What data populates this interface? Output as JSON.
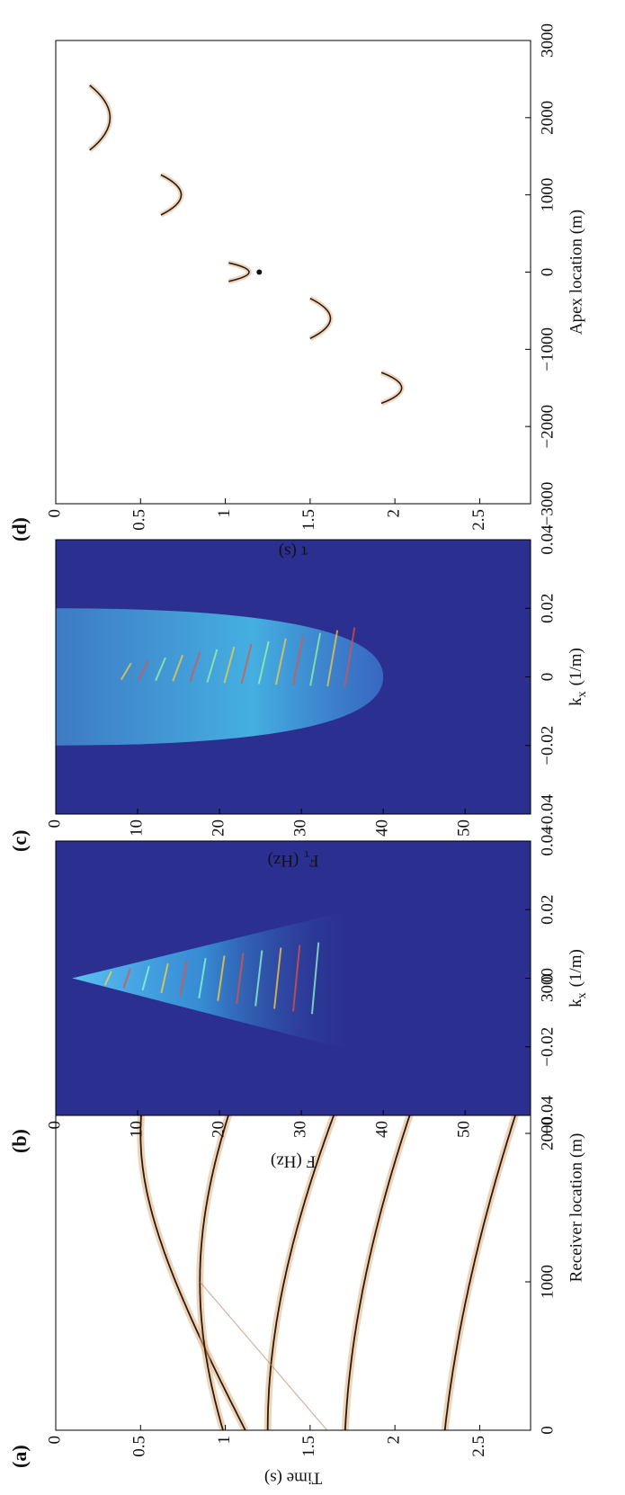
{
  "panels": [
    {
      "label": "(a)",
      "type": "image",
      "ylabel": "Time (s)",
      "xlabel": "Receiver location (m)",
      "xlim": [
        0,
        3000
      ],
      "xticks": [
        0,
        1000,
        2000,
        3000
      ],
      "ylim": [
        0,
        2.8
      ],
      "yticks": [
        0,
        0.5,
        1,
        1.5,
        2,
        2.5
      ],
      "background": "#ffffff"
    },
    {
      "label": "(b)",
      "type": "image",
      "ylabel": "F (Hz)",
      "xlabel": {
        "symbol": "k",
        "subscript": "x",
        "unit": "(1/m)"
      },
      "xlim": [
        -0.04,
        0.04
      ],
      "xticks": [
        {
          "value": -0.04,
          "label": "−0.04"
        },
        {
          "value": -0.02,
          "label": "−0.02"
        },
        0,
        0.02,
        0.04
      ],
      "ylim": [
        0,
        58
      ],
      "yticks": [
        0,
        10,
        20,
        30,
        40,
        50
      ],
      "background": "#2b2f8f"
    },
    {
      "label": "(c)",
      "type": "image",
      "ylabel": {
        "symbol": "F",
        "subscript": "τ",
        "unit": "(Hz)"
      },
      "xlabel": {
        "symbol": "k",
        "subscript": "x",
        "unit": "(1/m)"
      },
      "xlim": [
        -0.04,
        0.04
      ],
      "xticks": [
        {
          "value": -0.04,
          "label": "−0.04"
        },
        {
          "value": -0.02,
          "label": "−0.02"
        },
        0,
        0.02,
        0.04
      ],
      "ylim": [
        0,
        58
      ],
      "yticks": [
        0,
        10,
        20,
        30,
        40,
        50
      ],
      "background": "#2b2f8f"
    },
    {
      "label": "(d)",
      "type": "image",
      "ylabel": "τ (s)",
      "xlabel": "Apex location (m)",
      "xlim": [
        -3000,
        3000
      ],
      "xticks": [
        {
          "value": -3000,
          "label": "−3000"
        },
        {
          "value": -2000,
          "label": "−2000"
        },
        {
          "value": -1000,
          "label": "−1000"
        },
        0,
        1000,
        2000,
        3000
      ],
      "ylim": [
        0,
        2.8
      ],
      "yticks": [
        0,
        0.5,
        1,
        1.5,
        2,
        2.5
      ],
      "background": "#ffffff"
    }
  ]
}
